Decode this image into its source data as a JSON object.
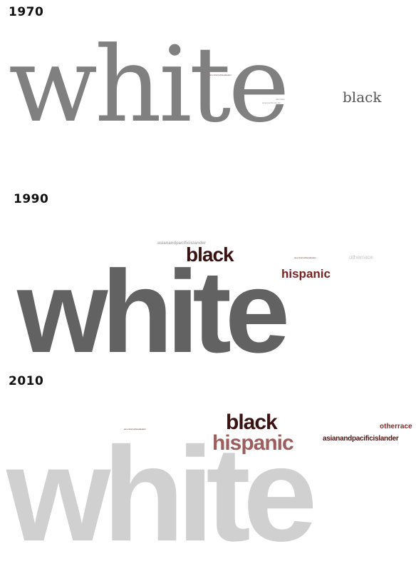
{
  "panels": [
    {
      "year": "1970",
      "words": {
        "white": {
          "text": "white",
          "color": "#808080"
        },
        "black": {
          "text": "black",
          "color": "#555555"
        },
        "small1": {
          "text": "americanindianalaskan",
          "color": "#7a4a4a"
        },
        "small2": {
          "text": "otherrace",
          "color": "#888888"
        },
        "small3": {
          "text": "asianpacificislander",
          "color": "#9a9a9a"
        }
      }
    },
    {
      "year": "1990",
      "words": {
        "white": {
          "text": "white",
          "color": "#626262"
        },
        "black": {
          "text": "black",
          "color": "#3b1212"
        },
        "hispanic": {
          "text": "hispanic",
          "color": "#7a2222"
        },
        "asian": {
          "text": "asianandpacificislander",
          "color": "#b0b0b0"
        },
        "otherrace": {
          "text": "otherrace",
          "color": "#c8c8c8"
        },
        "tiny": {
          "text": "americanindianalaskan",
          "color": "#8a3030"
        }
      }
    },
    {
      "year": "2010",
      "words": {
        "white": {
          "text": "white",
          "color": "#d0d0d0"
        },
        "black": {
          "text": "black",
          "color": "#3b1212"
        },
        "hispanic": {
          "text": "hispanic",
          "color": "#9e5e5e"
        },
        "otherrace": {
          "text": "otherrace",
          "color": "#8a2a2a"
        },
        "asian": {
          "text": "asianandpacificislander",
          "color": "#4a1616"
        },
        "tiny": {
          "text": "americanindianalaskan",
          "color": "#7a3030"
        }
      }
    }
  ]
}
